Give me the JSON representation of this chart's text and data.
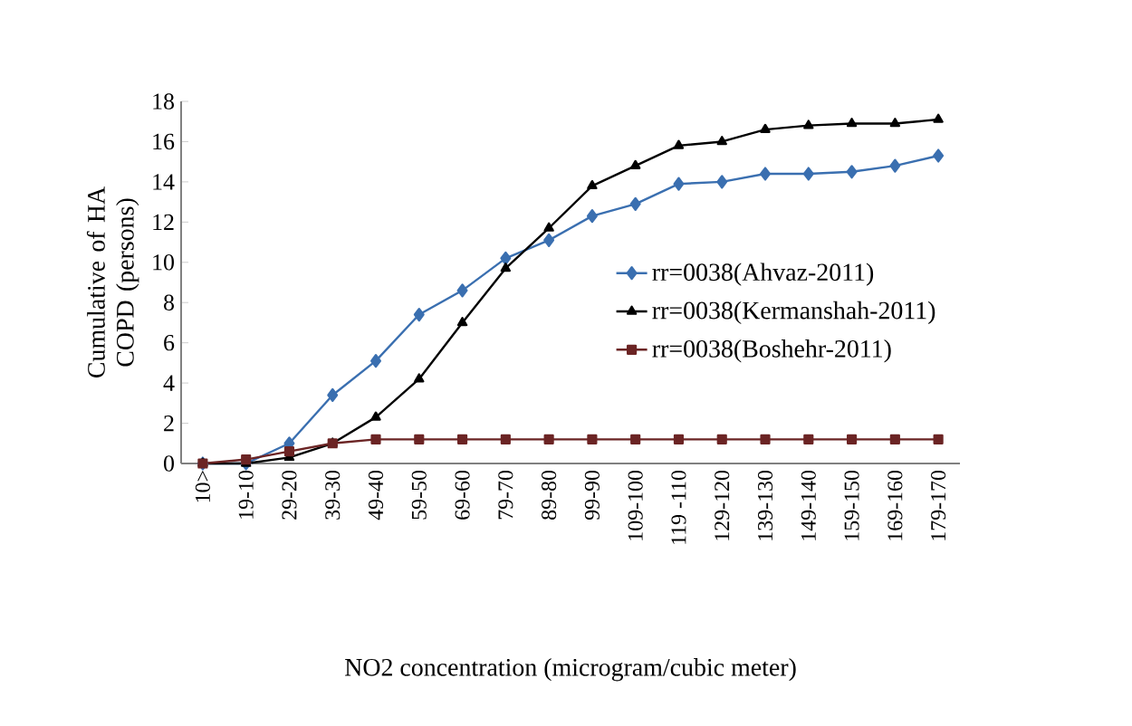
{
  "chart_data": {
    "type": "line",
    "xlabel": "NO2 concentration (microgram/cubic meter)",
    "ylabel": "Cumulative of HA COPD (persons)",
    "categories": [
      "10>",
      "19-10",
      "29-20",
      "39-30",
      "49-40",
      "59-50",
      "69-60",
      "79-70",
      "89-80",
      "99-90",
      "109-100",
      "119 -110",
      "129-120",
      "139-130",
      "149-140",
      "159-150",
      "169-160",
      "179-170"
    ],
    "series": [
      {
        "name": "rr=0038(Ahvaz-2011)",
        "color": "#3a6fb0",
        "marker": "diamond",
        "values": [
          0,
          0,
          1.0,
          3.4,
          5.1,
          7.4,
          8.6,
          10.2,
          11.1,
          12.3,
          12.9,
          13.9,
          14.0,
          14.4,
          14.4,
          14.5,
          14.8,
          15.3
        ]
      },
      {
        "name": "rr=0038(Kermanshah-2011)",
        "color": "#000000",
        "marker": "triangle",
        "values": [
          0,
          0,
          0.3,
          1.0,
          2.3,
          4.2,
          7.0,
          9.7,
          11.7,
          13.8,
          14.8,
          15.8,
          16.0,
          16.6,
          16.8,
          16.9,
          16.9,
          17.1
        ]
      },
      {
        "name": "rr=0038(Boshehr-2011)",
        "color": "#6b2424",
        "marker": "square",
        "values": [
          0,
          0.2,
          0.6,
          1.0,
          1.2,
          1.2,
          1.2,
          1.2,
          1.2,
          1.2,
          1.2,
          1.2,
          1.2,
          1.2,
          1.2,
          1.2,
          1.2,
          1.2
        ]
      }
    ],
    "ylim": [
      0,
      18
    ],
    "yticks": [
      0,
      2,
      4,
      6,
      8,
      10,
      12,
      14,
      16,
      18
    ],
    "grid": false,
    "legend": "right",
    "line_style": "solid"
  }
}
